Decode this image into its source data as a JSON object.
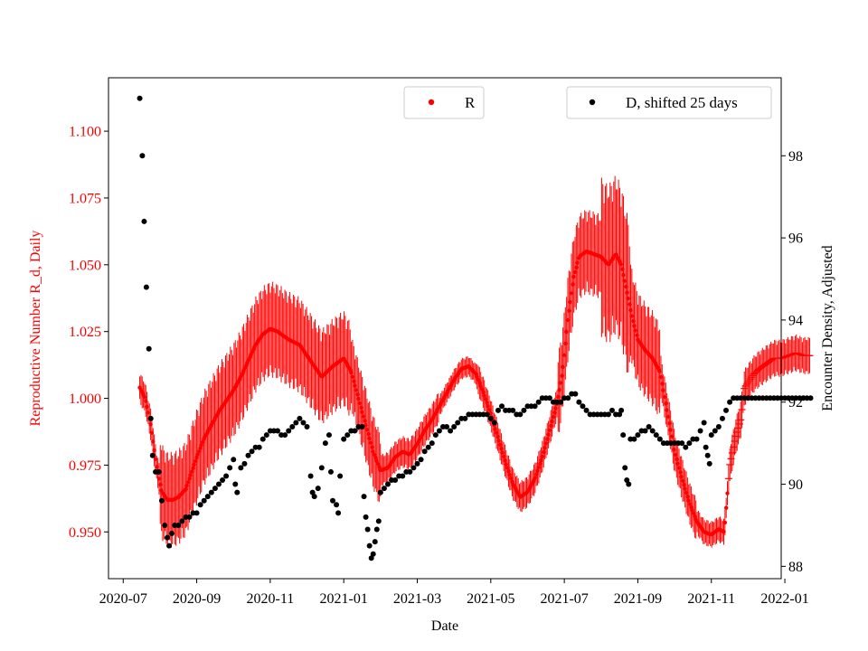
{
  "chart_data": {
    "type": "scatter",
    "xlabel": "Date",
    "ylabel_left": "Reproductive Number R_d, Daily",
    "ylabel_right": "Encounter Density, Adjusted",
    "x_ticks": [
      "2020-07",
      "2020-09",
      "2020-11",
      "2021-01",
      "2021-03",
      "2021-05",
      "2021-07",
      "2021-09",
      "2021-11",
      "2022-01"
    ],
    "x_domain": [
      -0.4,
      17.9
    ],
    "y_left_ticks": [
      "0.950",
      "0.975",
      "1.000",
      "1.025",
      "1.050",
      "1.075",
      "1.100"
    ],
    "y_left_range": [
      0.9325,
      1.12
    ],
    "y_right_ticks": [
      "88",
      "90",
      "92",
      "94",
      "96",
      "98"
    ],
    "y_right_range": [
      87.7,
      99.9
    ],
    "colors": {
      "R": "#ff0000",
      "D": "#000000"
    },
    "legend": [
      {
        "label": "R",
        "color": "#ff0000",
        "position": "top-center"
      },
      {
        "label": "D, shifted 25 days",
        "color": "#000000",
        "position": "top-right"
      }
    ],
    "series_R": {
      "name": "R",
      "axis": "left",
      "points_month_value": [
        [
          0.45,
          1.004
        ],
        [
          0.6,
          1.0
        ],
        [
          0.75,
          0.99
        ],
        [
          0.9,
          0.975
        ],
        [
          1.05,
          0.965
        ],
        [
          1.2,
          0.962
        ],
        [
          1.35,
          0.962
        ],
        [
          1.5,
          0.963
        ],
        [
          1.7,
          0.966
        ],
        [
          1.85,
          0.972
        ],
        [
          2.0,
          0.978
        ],
        [
          2.2,
          0.985
        ],
        [
          2.4,
          0.99
        ],
        [
          2.6,
          0.995
        ],
        [
          2.8,
          0.999
        ],
        [
          3.0,
          1.003
        ],
        [
          3.2,
          1.008
        ],
        [
          3.4,
          1.014
        ],
        [
          3.6,
          1.02
        ],
        [
          3.8,
          1.024
        ],
        [
          4.0,
          1.026
        ],
        [
          4.2,
          1.025
        ],
        [
          4.5,
          1.022
        ],
        [
          4.8,
          1.02
        ],
        [
          5.1,
          1.014
        ],
        [
          5.4,
          1.008
        ],
        [
          5.7,
          1.012
        ],
        [
          6.0,
          1.015
        ],
        [
          6.2,
          1.01
        ],
        [
          6.4,
          1.0
        ],
        [
          6.6,
          0.99
        ],
        [
          6.8,
          0.98
        ],
        [
          7.0,
          0.973
        ],
        [
          7.2,
          0.974
        ],
        [
          7.4,
          0.978
        ],
        [
          7.6,
          0.98
        ],
        [
          7.8,
          0.979
        ],
        [
          8.0,
          0.983
        ],
        [
          8.2,
          0.988
        ],
        [
          8.4,
          0.992
        ],
        [
          8.6,
          0.997
        ],
        [
          8.8,
          1.002
        ],
        [
          9.0,
          1.007
        ],
        [
          9.2,
          1.011
        ],
        [
          9.4,
          1.012
        ],
        [
          9.6,
          1.009
        ],
        [
          9.8,
          1.002
        ],
        [
          10.0,
          0.994
        ],
        [
          10.2,
          0.985
        ],
        [
          10.4,
          0.976
        ],
        [
          10.6,
          0.968
        ],
        [
          10.8,
          0.963
        ],
        [
          11.0,
          0.965
        ],
        [
          11.2,
          0.97
        ],
        [
          11.4,
          0.978
        ],
        [
          11.6,
          0.988
        ],
        [
          11.8,
          0.998
        ],
        [
          11.95,
          1.01
        ],
        [
          12.1,
          1.03
        ],
        [
          12.25,
          1.045
        ],
        [
          12.4,
          1.053
        ],
        [
          12.6,
          1.055
        ],
        [
          12.8,
          1.054
        ],
        [
          13.0,
          1.053
        ],
        [
          13.2,
          1.05
        ],
        [
          13.4,
          1.054
        ],
        [
          13.55,
          1.05
        ],
        [
          13.7,
          1.04
        ],
        [
          13.85,
          1.03
        ],
        [
          14.0,
          1.022
        ],
        [
          14.2,
          1.018
        ],
        [
          14.4,
          1.015
        ],
        [
          14.6,
          1.01
        ],
        [
          14.8,
          0.995
        ],
        [
          15.0,
          0.98
        ],
        [
          15.2,
          0.97
        ],
        [
          15.4,
          0.961
        ],
        [
          15.6,
          0.954
        ],
        [
          15.8,
          0.95
        ],
        [
          16.0,
          0.949
        ],
        [
          16.2,
          0.951
        ],
        [
          16.35,
          0.95
        ],
        [
          16.5,
          0.975
        ],
        [
          16.65,
          0.985
        ],
        [
          16.8,
          0.992
        ],
        [
          16.9,
          1.004
        ],
        [
          17.0,
          1.006
        ],
        [
          17.15,
          1.009
        ],
        [
          17.3,
          1.011
        ],
        [
          17.5,
          1.013
        ],
        [
          17.7,
          1.015
        ],
        [
          17.9,
          1.015
        ],
        [
          18.1,
          1.016
        ],
        [
          18.3,
          1.017
        ],
        [
          18.5,
          1.016
        ],
        [
          18.7,
          1.016
        ]
      ]
    },
    "series_D": {
      "name": "D, shifted 25 days",
      "axis": "right",
      "points_month_value": [
        [
          0.45,
          99.4
        ],
        [
          0.52,
          98.0
        ],
        [
          0.57,
          96.4
        ],
        [
          0.63,
          94.8
        ],
        [
          0.7,
          93.3
        ],
        [
          0.75,
          91.6
        ],
        [
          0.8,
          90.7
        ],
        [
          0.88,
          90.3
        ],
        [
          0.97,
          90.3
        ],
        [
          1.05,
          89.6
        ],
        [
          1.13,
          89.0
        ],
        [
          1.2,
          88.7
        ],
        [
          1.25,
          88.5
        ],
        [
          1.32,
          88.8
        ],
        [
          1.4,
          89.0
        ],
        [
          1.5,
          89.0
        ],
        [
          1.6,
          89.1
        ],
        [
          1.7,
          89.2
        ],
        [
          1.8,
          89.2
        ],
        [
          1.9,
          89.3
        ],
        [
          2.0,
          89.3
        ],
        [
          2.1,
          89.5
        ],
        [
          2.2,
          89.6
        ],
        [
          2.3,
          89.7
        ],
        [
          2.4,
          89.8
        ],
        [
          2.5,
          89.9
        ],
        [
          2.6,
          90.0
        ],
        [
          2.7,
          90.1
        ],
        [
          2.8,
          90.2
        ],
        [
          2.9,
          90.4
        ],
        [
          3.0,
          90.6
        ],
        [
          3.05,
          90.0
        ],
        [
          3.1,
          89.8
        ],
        [
          3.2,
          90.4
        ],
        [
          3.3,
          90.5
        ],
        [
          3.4,
          90.7
        ],
        [
          3.5,
          90.8
        ],
        [
          3.6,
          90.9
        ],
        [
          3.7,
          90.9
        ],
        [
          3.8,
          91.1
        ],
        [
          3.9,
          91.2
        ],
        [
          4.0,
          91.3
        ],
        [
          4.1,
          91.3
        ],
        [
          4.2,
          91.3
        ],
        [
          4.3,
          91.2
        ],
        [
          4.4,
          91.2
        ],
        [
          4.5,
          91.3
        ],
        [
          4.6,
          91.4
        ],
        [
          4.7,
          91.5
        ],
        [
          4.8,
          91.6
        ],
        [
          4.9,
          91.5
        ],
        [
          5.0,
          91.4
        ],
        [
          5.1,
          90.2
        ],
        [
          5.15,
          89.8
        ],
        [
          5.2,
          89.7
        ],
        [
          5.3,
          89.9
        ],
        [
          5.4,
          90.4
        ],
        [
          5.5,
          91.0
        ],
        [
          5.6,
          91.2
        ],
        [
          5.65,
          90.3
        ],
        [
          5.7,
          89.6
        ],
        [
          5.8,
          89.5
        ],
        [
          5.85,
          89.3
        ],
        [
          5.9,
          90.2
        ],
        [
          6.0,
          91.1
        ],
        [
          6.1,
          91.2
        ],
        [
          6.2,
          91.3
        ],
        [
          6.3,
          91.3
        ],
        [
          6.4,
          91.4
        ],
        [
          6.5,
          91.4
        ],
        [
          6.55,
          89.7
        ],
        [
          6.6,
          89.2
        ],
        [
          6.65,
          88.9
        ],
        [
          6.7,
          88.5
        ],
        [
          6.75,
          88.2
        ],
        [
          6.8,
          88.3
        ],
        [
          6.85,
          88.6
        ],
        [
          6.9,
          88.9
        ],
        [
          6.95,
          89.1
        ],
        [
          7.0,
          89.8
        ],
        [
          7.1,
          89.9
        ],
        [
          7.2,
          90.0
        ],
        [
          7.3,
          90.1
        ],
        [
          7.4,
          90.1
        ],
        [
          7.5,
          90.2
        ],
        [
          7.6,
          90.2
        ],
        [
          7.7,
          90.3
        ],
        [
          7.8,
          90.3
        ],
        [
          7.9,
          90.4
        ],
        [
          8.0,
          90.5
        ],
        [
          8.1,
          90.6
        ],
        [
          8.2,
          90.8
        ],
        [
          8.3,
          90.9
        ],
        [
          8.4,
          91.0
        ],
        [
          8.5,
          91.2
        ],
        [
          8.6,
          91.3
        ],
        [
          8.7,
          91.4
        ],
        [
          8.8,
          91.4
        ],
        [
          8.9,
          91.3
        ],
        [
          9.0,
          91.4
        ],
        [
          9.1,
          91.5
        ],
        [
          9.2,
          91.6
        ],
        [
          9.3,
          91.6
        ],
        [
          9.4,
          91.7
        ],
        [
          9.5,
          91.7
        ],
        [
          9.6,
          91.7
        ],
        [
          9.7,
          91.7
        ],
        [
          9.8,
          91.7
        ],
        [
          9.9,
          91.7
        ],
        [
          10.0,
          91.6
        ],
        [
          10.1,
          91.5
        ],
        [
          10.2,
          91.8
        ],
        [
          10.3,
          91.9
        ],
        [
          10.4,
          91.8
        ],
        [
          10.5,
          91.8
        ],
        [
          10.6,
          91.8
        ],
        [
          10.7,
          91.7
        ],
        [
          10.8,
          91.7
        ],
        [
          10.9,
          91.8
        ],
        [
          11.0,
          91.9
        ],
        [
          11.1,
          91.9
        ],
        [
          11.2,
          91.9
        ],
        [
          11.3,
          92.0
        ],
        [
          11.4,
          92.1
        ],
        [
          11.5,
          92.1
        ],
        [
          11.6,
          92.1
        ],
        [
          11.7,
          92.0
        ],
        [
          11.8,
          92.0
        ],
        [
          11.9,
          92.0
        ],
        [
          12.0,
          92.1
        ],
        [
          12.1,
          92.1
        ],
        [
          12.2,
          92.2
        ],
        [
          12.3,
          92.2
        ],
        [
          12.4,
          92.0
        ],
        [
          12.5,
          91.9
        ],
        [
          12.6,
          91.8
        ],
        [
          12.7,
          91.7
        ],
        [
          12.8,
          91.7
        ],
        [
          12.9,
          91.7
        ],
        [
          13.0,
          91.7
        ],
        [
          13.1,
          91.7
        ],
        [
          13.2,
          91.7
        ],
        [
          13.3,
          91.8
        ],
        [
          13.4,
          91.7
        ],
        [
          13.5,
          91.7
        ],
        [
          13.55,
          91.8
        ],
        [
          13.6,
          91.2
        ],
        [
          13.65,
          90.4
        ],
        [
          13.7,
          90.1
        ],
        [
          13.75,
          90.0
        ],
        [
          13.8,
          91.1
        ],
        [
          13.9,
          91.1
        ],
        [
          14.0,
          91.2
        ],
        [
          14.1,
          91.3
        ],
        [
          14.2,
          91.3
        ],
        [
          14.3,
          91.4
        ],
        [
          14.4,
          91.3
        ],
        [
          14.5,
          91.2
        ],
        [
          14.6,
          91.1
        ],
        [
          14.7,
          91.0
        ],
        [
          14.8,
          91.0
        ],
        [
          14.9,
          91.0
        ],
        [
          15.0,
          91.0
        ],
        [
          15.1,
          91.0
        ],
        [
          15.2,
          91.0
        ],
        [
          15.3,
          90.9
        ],
        [
          15.4,
          91.0
        ],
        [
          15.5,
          91.1
        ],
        [
          15.6,
          91.1
        ],
        [
          15.7,
          91.3
        ],
        [
          15.8,
          91.5
        ],
        [
          15.85,
          90.9
        ],
        [
          15.9,
          90.7
        ],
        [
          15.95,
          90.5
        ],
        [
          16.0,
          91.2
        ],
        [
          16.1,
          91.3
        ],
        [
          16.2,
          91.4
        ],
        [
          16.3,
          91.6
        ],
        [
          16.4,
          91.8
        ],
        [
          16.5,
          92.0
        ],
        [
          16.6,
          92.1
        ],
        [
          16.7,
          92.1
        ],
        [
          16.8,
          92.1
        ],
        [
          16.9,
          92.1
        ],
        [
          17.0,
          92.1
        ],
        [
          17.1,
          92.1
        ],
        [
          17.2,
          92.1
        ],
        [
          17.3,
          92.1
        ],
        [
          17.4,
          92.1
        ],
        [
          17.5,
          92.1
        ],
        [
          17.6,
          92.1
        ],
        [
          17.7,
          92.1
        ],
        [
          17.8,
          92.1
        ],
        [
          17.9,
          92.1
        ],
        [
          18.0,
          92.1
        ],
        [
          18.1,
          92.1
        ],
        [
          18.2,
          92.1
        ],
        [
          18.3,
          92.1
        ],
        [
          18.4,
          92.1
        ],
        [
          18.5,
          92.1
        ],
        [
          18.6,
          92.1
        ],
        [
          18.7,
          92.1
        ]
      ]
    }
  }
}
